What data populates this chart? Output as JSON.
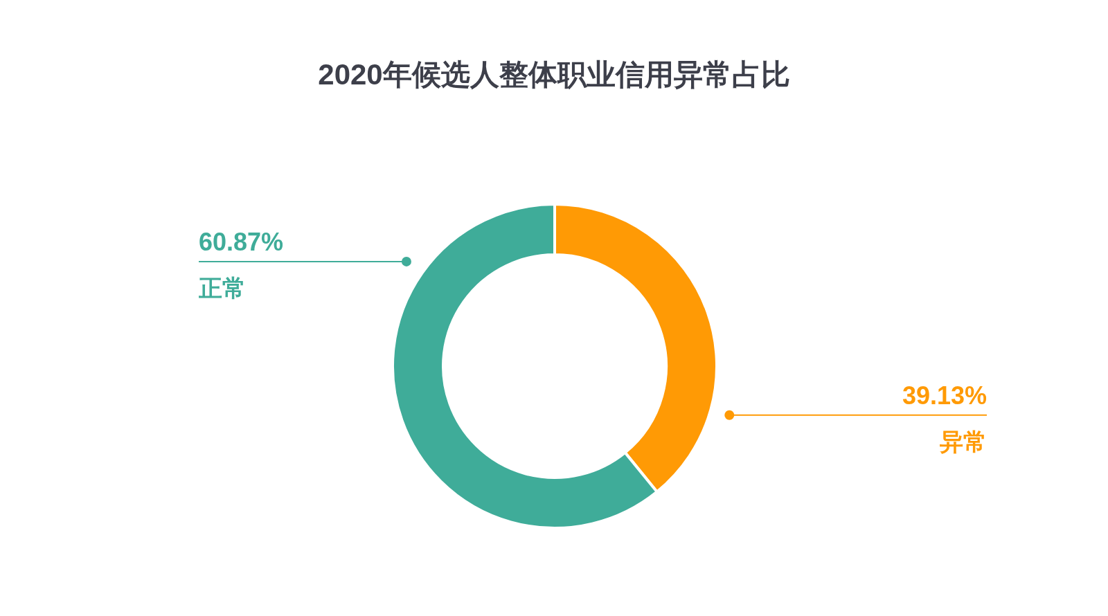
{
  "chart_data": {
    "type": "donut",
    "title": "2020年候选人整体职业信用异常占比",
    "categories": [
      "异常",
      "正常"
    ],
    "values": [
      39.13,
      60.87
    ],
    "colors": [
      "#ff9a05",
      "#3fac99"
    ],
    "value_labels": [
      "39.13%",
      "60.87%"
    ]
  }
}
